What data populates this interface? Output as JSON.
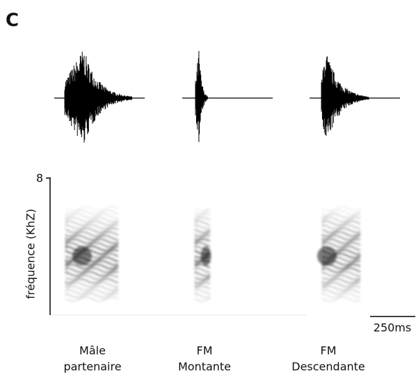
{
  "panel_label": "C",
  "y_axis": {
    "label": "fréquence (KhZ)",
    "top_label": "8"
  },
  "scale_bar": {
    "label": "250ms"
  },
  "stimuli": [
    {
      "lines": [
        "Mâle",
        "partenaire"
      ]
    },
    {
      "lines": [
        "FM",
        "Montante"
      ]
    },
    {
      "lines": [
        "FM",
        "Descendante"
      ]
    }
  ]
}
